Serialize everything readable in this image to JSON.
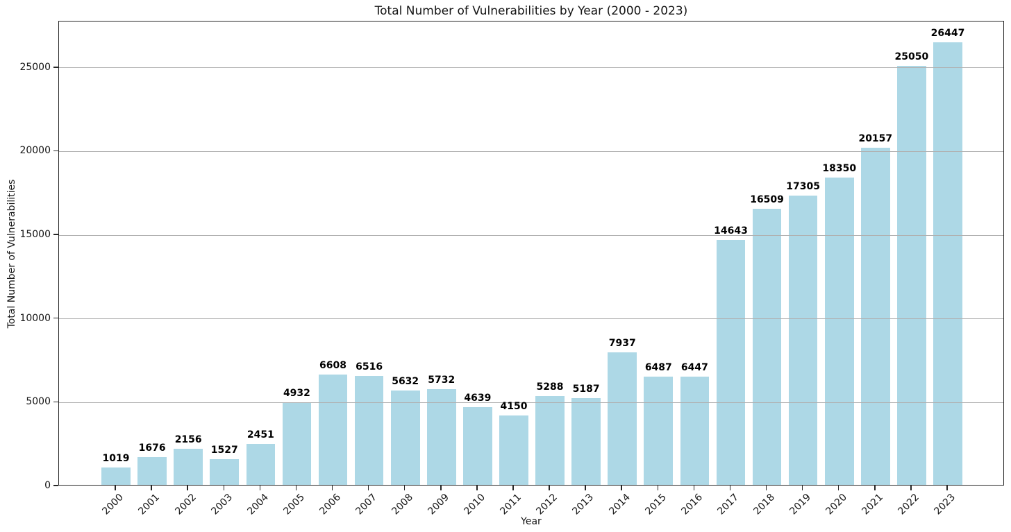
{
  "chart_data": {
    "type": "bar",
    "title": "Total Number of Vulnerabilities by Year (2000 - 2023)",
    "xlabel": "Year",
    "ylabel": "Total Number of Vulnerabilities",
    "categories": [
      "2000",
      "2001",
      "2002",
      "2003",
      "2004",
      "2005",
      "2006",
      "2007",
      "2008",
      "2009",
      "2010",
      "2011",
      "2012",
      "2013",
      "2014",
      "2015",
      "2016",
      "2017",
      "2018",
      "2019",
      "2020",
      "2021",
      "2022",
      "2023"
    ],
    "values": [
      1019,
      1676,
      2156,
      1527,
      2451,
      4932,
      6608,
      6516,
      5632,
      5732,
      4639,
      4150,
      5288,
      5187,
      7937,
      6487,
      6447,
      14643,
      16509,
      17305,
      18350,
      20157,
      25050,
      26447
    ],
    "bar_value_labels": [
      "1019",
      "1676",
      "2156",
      "1527",
      "2451",
      "4932",
      "6608",
      "6516",
      "5632",
      "5732",
      "4639",
      "4150",
      "5288",
      "5187",
      "7937",
      "6487",
      "6447",
      "14643",
      "16509",
      "17305",
      "18350",
      "20157",
      "25050",
      "26447"
    ],
    "ylim": [
      0,
      27770
    ],
    "yticks": [
      0,
      5000,
      10000,
      15000,
      20000,
      25000
    ],
    "ytick_labels": [
      "0",
      "5000",
      "10000",
      "15000",
      "20000",
      "25000"
    ],
    "x_tick_rotation_deg": 45,
    "grid": "horizontal-over-bars",
    "legend": "none",
    "colors": {
      "bar_fill": "#ADD8E6",
      "gridline": "#b0b0b0",
      "spine": "#262626",
      "text": "#151515",
      "bar_label_text": "#000000",
      "background": "#ffffff"
    }
  }
}
